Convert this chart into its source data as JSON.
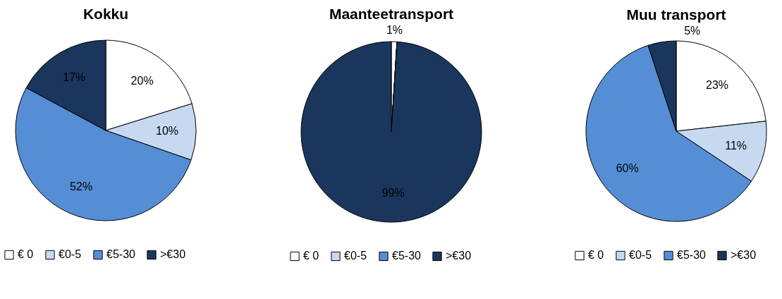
{
  "chart_data": [
    {
      "type": "pie",
      "title": "Kokku",
      "categories": [
        "€ 0",
        "€0-5",
        "€5-30",
        ">€30"
      ],
      "values": [
        20,
        10,
        52,
        17
      ],
      "colors": [
        "#ffffff",
        "#c6d9f1",
        "#558ed5",
        "#1b365d"
      ],
      "value_labels": [
        "20%",
        "10%",
        "52%",
        "17%"
      ],
      "legend": "bottom"
    },
    {
      "type": "pie",
      "title": "Maanteetransport",
      "categories": [
        "€ 0",
        "€0-5",
        "€5-30",
        ">€30"
      ],
      "values": [
        1,
        0,
        0,
        99
      ],
      "colors": [
        "#ffffff",
        "#c6d9f1",
        "#558ed5",
        "#1b365d"
      ],
      "value_labels": [
        "1%",
        null,
        null,
        "99%"
      ],
      "legend": "bottom"
    },
    {
      "type": "pie",
      "title": "Muu transport",
      "categories": [
        "€ 0",
        "€0-5",
        "€5-30",
        ">€30"
      ],
      "values": [
        23,
        11,
        60,
        5
      ],
      "colors": [
        "#ffffff",
        "#c6d9f1",
        "#558ed5",
        "#1b365d"
      ],
      "value_labels": [
        "23%",
        "11%",
        "60%",
        "5%"
      ],
      "legend": "bottom"
    }
  ]
}
